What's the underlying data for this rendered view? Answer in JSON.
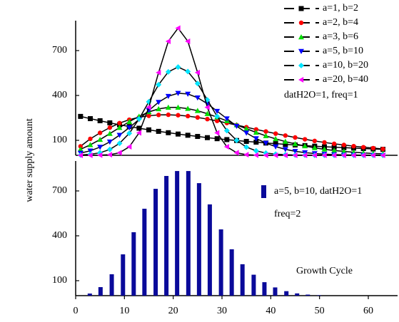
{
  "chart_data": [
    {
      "type": "line",
      "ylabel": "water supply amount",
      "annotation": "datH2O=1,  freq=1",
      "line_color": "#000000",
      "xlim": [
        0,
        66
      ],
      "ylim": [
        0,
        900
      ],
      "yticks": [
        100,
        400,
        700
      ],
      "x": [
        1,
        3,
        5,
        7,
        9,
        11,
        13,
        15,
        17,
        19,
        21,
        23,
        25,
        27,
        29,
        31,
        33,
        35,
        37,
        39,
        41,
        43,
        45,
        47,
        49,
        51,
        53,
        55,
        57,
        59,
        61,
        63
      ],
      "series": [
        {
          "name": "a=1,   b=2",
          "color": "#000000",
          "marker": "square",
          "values": [
            260,
            245,
            231,
            217,
            204,
            192,
            181,
            170,
            160,
            151,
            142,
            134,
            126,
            118,
            111,
            105,
            99,
            93,
            88,
            82,
            78,
            73,
            69,
            65,
            61,
            57,
            54,
            51,
            48,
            45,
            42,
            40
          ]
        },
        {
          "name": "a=2,   b=4",
          "color": "#ff0000",
          "marker": "circle",
          "values": [
            60,
            110,
            150,
            185,
            215,
            238,
            254,
            264,
            270,
            271,
            268,
            262,
            253,
            242,
            230,
            216,
            202,
            188,
            173,
            159,
            145,
            132,
            119,
            107,
            96,
            86,
            77,
            69,
            61,
            54,
            48,
            42
          ]
        },
        {
          "name": "a=3,   b=6",
          "color": "#00dd00",
          "marker": "triangle-up",
          "values": [
            40,
            70,
            105,
            145,
            185,
            225,
            260,
            290,
            310,
            320,
            320,
            312,
            298,
            278,
            255,
            230,
            203,
            178,
            153,
            130,
            110,
            92,
            76,
            62,
            50,
            40,
            32,
            26,
            20,
            16,
            12,
            10
          ]
        },
        {
          "name": "a=5,   b=10",
          "color": "#0000ff",
          "marker": "triangle-down",
          "values": [
            15,
            30,
            55,
            90,
            135,
            185,
            240,
            300,
            355,
            395,
            415,
            410,
            385,
            345,
            295,
            245,
            195,
            150,
            112,
            82,
            58,
            40,
            27,
            18,
            12,
            8,
            5,
            3,
            2,
            1,
            1,
            0
          ]
        },
        {
          "name": "a=10, b=20",
          "color": "#00e5ff",
          "marker": "diamond",
          "values": [
            2,
            7,
            17,
            39,
            80,
            147,
            243,
            358,
            472,
            558,
            590,
            560,
            480,
            370,
            260,
            165,
            100,
            55,
            30,
            15,
            8,
            4,
            2,
            1,
            0,
            0,
            0,
            0,
            0,
            0,
            0,
            0
          ]
        },
        {
          "name": "a=20, b=40",
          "color": "#ff00ff",
          "marker": "triangle-left",
          "values": [
            0,
            0,
            1,
            4,
            17,
            57,
            150,
            321,
            553,
            762,
            850,
            762,
            553,
            321,
            150,
            57,
            17,
            4,
            1,
            0,
            0,
            0,
            0,
            0,
            0,
            0,
            0,
            0,
            0,
            0,
            0,
            0
          ]
        }
      ]
    },
    {
      "type": "bar",
      "series_name": "a=5, b=10, datH2O=1",
      "annotations": [
        "freq=2",
        "Growth Cycle"
      ],
      "color": "#0a0a9a",
      "xlim": [
        0,
        66
      ],
      "xticks": [
        0,
        10,
        20,
        30,
        40,
        50,
        60
      ],
      "ylim": [
        0,
        900
      ],
      "yticks": [
        100,
        400,
        700
      ],
      "x": [
        2.9,
        5.1,
        7.4,
        9.7,
        11.9,
        14.1,
        16.4,
        18.6,
        20.8,
        23.1,
        25.3,
        27.5,
        29.8,
        32,
        34.2,
        36.5,
        38.7,
        40.9,
        43.2,
        45.4,
        47.6,
        49.9
      ],
      "values": [
        14,
        57,
        143,
        276,
        424,
        581,
        714,
        800,
        833,
        833,
        752,
        610,
        443,
        310,
        210,
        140,
        90,
        55,
        30,
        15,
        7,
        3
      ]
    }
  ]
}
